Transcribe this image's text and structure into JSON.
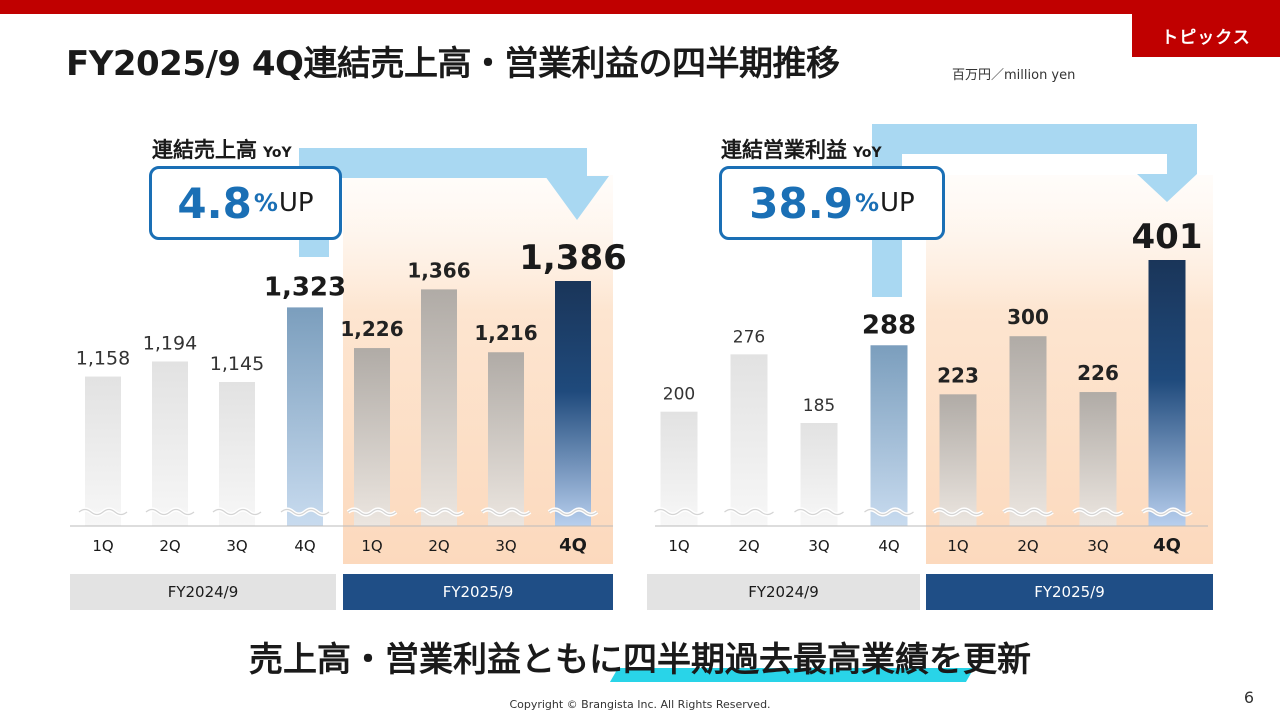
{
  "header": {
    "topics_label": "トピックス",
    "title": "FY2025/9 4Q連結売上高・営業利益の四半期推移",
    "unit": "百万円／million yen"
  },
  "colors": {
    "brand_red": "#c00000",
    "accent_blue": "#1a6fb5",
    "current_year_bar": "#1f4e86",
    "highlight_cyan": "#29d4e8"
  },
  "charts": [
    {
      "label": "連結売上高",
      "yoy_label": "YoY",
      "yoy_value": "4.8",
      "yoy_pct": "%",
      "yoy_up": "UP"
    },
    {
      "label": "連結営業利益",
      "yoy_label": "YoY",
      "yoy_value": "38.9",
      "yoy_pct": "%",
      "yoy_up": "UP"
    }
  ],
  "fiscal_years": [
    "FY2024/9",
    "FY2025/9"
  ],
  "chart_data": [
    {
      "type": "bar",
      "title": "連結売上高",
      "categories": [
        "1Q",
        "2Q",
        "3Q",
        "4Q",
        "1Q",
        "2Q",
        "3Q",
        "4Q"
      ],
      "groups": [
        "FY2024/9",
        "FY2024/9",
        "FY2024/9",
        "FY2024/9",
        "FY2025/9",
        "FY2025/9",
        "FY2025/9",
        "FY2025/9"
      ],
      "values": [
        1158,
        1194,
        1145,
        1323,
        1226,
        1366,
        1216,
        1386
      ],
      "value_labels": [
        "1,158",
        "1,194",
        "1,145",
        "1,323",
        "1,226",
        "1,366",
        "1,216",
        "1,386"
      ],
      "axis_broken": true,
      "yoy": "4.8%UP"
    },
    {
      "type": "bar",
      "title": "連結営業利益",
      "categories": [
        "1Q",
        "2Q",
        "3Q",
        "4Q",
        "1Q",
        "2Q",
        "3Q",
        "4Q"
      ],
      "groups": [
        "FY2024/9",
        "FY2024/9",
        "FY2024/9",
        "FY2024/9",
        "FY2025/9",
        "FY2025/9",
        "FY2025/9",
        "FY2025/9"
      ],
      "values": [
        200,
        276,
        185,
        288,
        223,
        300,
        226,
        401
      ],
      "value_labels": [
        "200",
        "276",
        "185",
        "288",
        "223",
        "300",
        "226",
        "401"
      ],
      "axis_broken": true,
      "yoy": "38.9%UP"
    }
  ],
  "footer": {
    "message": "売上高・営業利益ともに四半期過去最高業績を更新",
    "copyright": "Copyright © Brangista Inc. All Rights Reserved.",
    "page_number": "6"
  }
}
